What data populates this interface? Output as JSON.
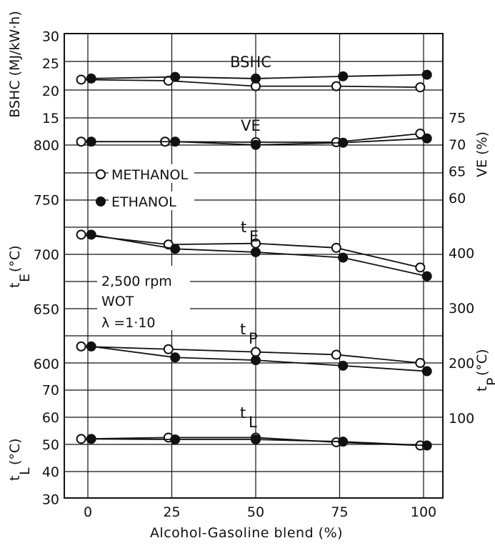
{
  "chart_data": {
    "type": "line",
    "xlabel": "Alcohol-Gasoline blend (%)",
    "x_ticks": [
      "0",
      "25",
      "50",
      "75",
      "100"
    ],
    "legend": [
      {
        "label": "METHANOL",
        "marker": "open-circle"
      },
      {
        "label": "ETHANOL",
        "marker": "filled-circle"
      }
    ],
    "conditions": [
      "2,500 rpm",
      "WOT",
      "λ =1·10"
    ],
    "axes": {
      "bshc": {
        "label": "BSHC (MJ/kW·h)",
        "ticks": [
          "15",
          "20",
          "25",
          "30"
        ],
        "side": "left"
      },
      "ve": {
        "label": "VE (%)",
        "ticks": [
          "60",
          "65",
          "70",
          "75"
        ],
        "side": "right"
      },
      "tE": {
        "label": "tE (°C)",
        "ticks": [
          "600",
          "650",
          "700",
          "750",
          "800"
        ],
        "side": "left"
      },
      "tP": {
        "label": "tP (°C)",
        "ticks": [
          "100",
          "200",
          "300",
          "400"
        ],
        "side": "right"
      },
      "tL": {
        "label": "tL (°C)",
        "ticks": [
          "30",
          "40",
          "50",
          "60",
          "70"
        ],
        "side": "left"
      }
    },
    "panels": [
      {
        "id": "bshc",
        "label": "BSHC",
        "axis": "bshc",
        "series": [
          {
            "name": "METHANOL",
            "x": [
              -2,
              24,
              50,
              74,
              99
            ],
            "y": [
              22.0,
              21.8,
              20.8,
              20.8,
              20.6
            ]
          },
          {
            "name": "ETHANOL",
            "x": [
              1,
              26,
              50,
              76,
              101
            ],
            "y": [
              22.2,
              22.5,
              22.2,
              22.6,
              22.9
            ]
          }
        ]
      },
      {
        "id": "ve",
        "label": "VE",
        "axis": "ve",
        "series": [
          {
            "name": "METHANOL",
            "x": [
              -2,
              23,
              50,
              74,
              99
            ],
            "y": [
              70.5,
              70.5,
              70.4,
              70.4,
              72.0
            ]
          },
          {
            "name": "ETHANOL",
            "x": [
              1,
              26,
              50,
              76,
              101
            ],
            "y": [
              70.5,
              70.5,
              69.9,
              70.3,
              71.1
            ]
          }
        ]
      },
      {
        "id": "tE",
        "label": "tE",
        "axis": "tE",
        "series": [
          {
            "name": "METHANOL",
            "x": [
              -2,
              24,
              50,
              74,
              99
            ],
            "y": [
              718,
              709,
              710,
              706,
              688
            ]
          },
          {
            "name": "ETHANOL",
            "x": [
              1,
              26,
              50,
              76,
              101
            ],
            "y": [
              718,
              705,
              702,
              697,
              680
            ]
          }
        ]
      },
      {
        "id": "tP",
        "label": "tP",
        "axis": "tP",
        "series": [
          {
            "name": "METHANOL",
            "x": [
              -2,
              24,
              50,
              74,
              99
            ],
            "y": [
              230,
              225,
              220,
              215,
              200
            ]
          },
          {
            "name": "ETHANOL",
            "x": [
              1,
              26,
              50,
              76,
              101
            ],
            "y": [
              230,
              210,
              205,
              195,
              185
            ]
          }
        ]
      },
      {
        "id": "tL",
        "label": "tL",
        "axis": "tL",
        "series": [
          {
            "name": "METHANOL",
            "x": [
              -2,
              24,
              50,
              74,
              99
            ],
            "y": [
              52,
              52.5,
              52.5,
              50.8,
              49.6
            ]
          },
          {
            "name": "ETHANOL",
            "x": [
              1,
              26,
              50,
              76,
              101
            ],
            "y": [
              52,
              51.8,
              51.8,
              51,
              49.6
            ]
          }
        ]
      }
    ]
  }
}
